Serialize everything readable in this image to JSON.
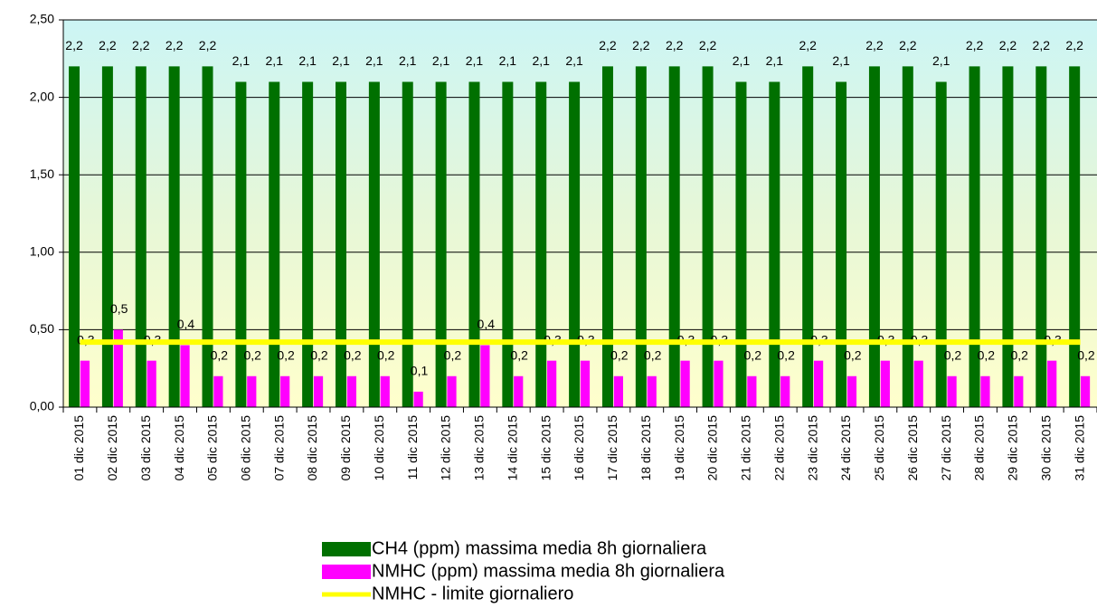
{
  "chart_data": {
    "type": "bar",
    "categories": [
      "01 dic 2015",
      "02 dic 2015",
      "03 dic 2015",
      "04 dic 2015",
      "05 dic 2015",
      "06 dic 2015",
      "07 dic 2015",
      "08 dic 2015",
      "09 dic 2015",
      "10 dic 2015",
      "11 dic 2015",
      "12 dic 2015",
      "13 dic 2015",
      "14 dic 2015",
      "15 dic 2015",
      "16 dic 2015",
      "17 dic 2015",
      "18 dic 2015",
      "19 dic 2015",
      "20 dic 2015",
      "21 dic 2015",
      "22 dic 2015",
      "23 dic 2015",
      "24 dic 2015",
      "25 dic 2015",
      "26 dic 2015",
      "27 dic 2015",
      "28 dic 2015",
      "29 dic 2015",
      "30 dic 2015",
      "31 dic 2015"
    ],
    "series": [
      {
        "name": "CH4 (ppm) massima media 8h giornaliera",
        "color": "#007000",
        "kind": "bar",
        "values": [
          2.2,
          2.2,
          2.2,
          2.2,
          2.2,
          2.1,
          2.1,
          2.1,
          2.1,
          2.1,
          2.1,
          2.1,
          2.1,
          2.1,
          2.1,
          2.1,
          2.2,
          2.2,
          2.2,
          2.2,
          2.1,
          2.1,
          2.2,
          2.1,
          2.2,
          2.2,
          2.1,
          2.2,
          2.2,
          2.2,
          2.2
        ],
        "value_labels": [
          "2,2",
          "2,2",
          "2,2",
          "2,2",
          "2,2",
          "2,1",
          "2,1",
          "2,1",
          "2,1",
          "2,1",
          "2,1",
          "2,1",
          "2,1",
          "2,1",
          "2,1",
          "2,1",
          "2,2",
          "2,2",
          "2,2",
          "2,2",
          "2,1",
          "2,1",
          "2,2",
          "2,1",
          "2,2",
          "2,2",
          "2,1",
          "2,2",
          "2,2",
          "2,2",
          "2,2"
        ]
      },
      {
        "name": "NMHC (ppm) massima media 8h giornaliera",
        "color": "#ff00ff",
        "kind": "bar",
        "values": [
          0.3,
          0.5,
          0.3,
          0.4,
          0.2,
          0.2,
          0.2,
          0.2,
          0.2,
          0.2,
          0.1,
          0.2,
          0.4,
          0.2,
          0.3,
          0.3,
          0.2,
          0.2,
          0.3,
          0.3,
          0.2,
          0.2,
          0.3,
          0.2,
          0.3,
          0.3,
          0.2,
          0.2,
          0.2,
          0.3,
          0.2
        ],
        "value_labels": [
          "0,3",
          "0,5",
          "0,3",
          "0,4",
          "0,2",
          "0,2",
          "0,2",
          "0,2",
          "0,2",
          "0,2",
          "0,1",
          "0,2",
          "0,4",
          "0,2",
          "0,3",
          "0,3",
          "0,2",
          "0,2",
          "0,3",
          "0,3",
          "0,2",
          "0,2",
          "0,3",
          "0,2",
          "0,3",
          "0,3",
          "0,2",
          "0,2",
          "0,2",
          "0,3",
          "0,2"
        ]
      },
      {
        "name": "NMHC - limite giornaliero",
        "color": "#ffff00",
        "kind": "line",
        "values": [
          0.42,
          0.42,
          0.42,
          0.42,
          0.42,
          0.42,
          0.42,
          0.42,
          0.42,
          0.42,
          0.42,
          0.42,
          0.42,
          0.42,
          0.42,
          0.42,
          0.42,
          0.42,
          0.42,
          0.42,
          0.42,
          0.42,
          0.42,
          0.42,
          0.42,
          0.42,
          0.42,
          0.42,
          0.42,
          0.42,
          0.42
        ]
      }
    ],
    "ylim": [
      0,
      2.5
    ],
    "yticks": [
      {
        "value": 0,
        "label": "0,00"
      },
      {
        "value": 0.5,
        "label": "0,50"
      },
      {
        "value": 1,
        "label": "1,00"
      },
      {
        "value": 1.5,
        "label": "1,50"
      },
      {
        "value": 2,
        "label": "2,00"
      },
      {
        "value": 2.5,
        "label": "2,50"
      }
    ],
    "grid": true
  }
}
